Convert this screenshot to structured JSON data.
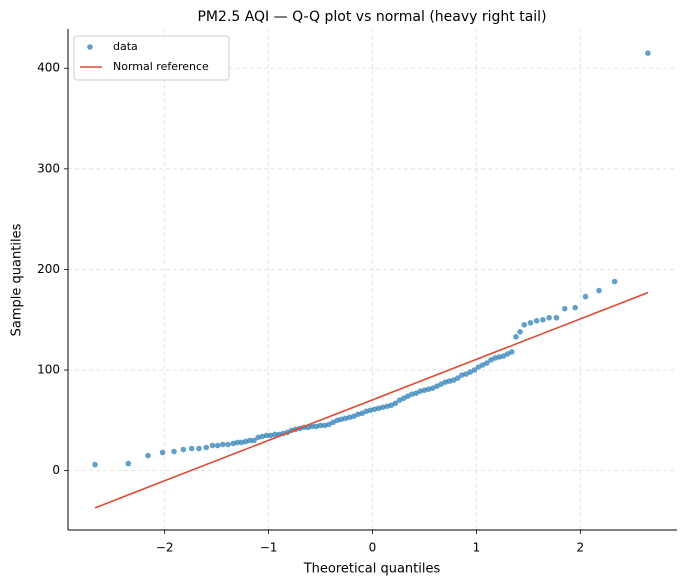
{
  "chart_data": {
    "type": "scatter",
    "title": "PM2.5 AQI — Q-Q plot vs normal  (heavy right tail)",
    "xlabel": "Theoretical quantiles",
    "ylabel": "Sample quantiles",
    "series": [
      {
        "name": "data",
        "color": "#1f77b4",
        "type": "scatter",
        "x": [
          -2.67,
          -2.35,
          -2.16,
          -2.02,
          -1.91,
          -1.82,
          -1.74,
          -1.67,
          -1.6,
          -1.54,
          -1.49,
          -1.44,
          -1.39,
          -1.34,
          -1.3,
          -1.26,
          -1.22,
          -1.18,
          -1.14,
          -1.1,
          -1.06,
          -1.02,
          -0.98,
          -0.94,
          -0.9,
          -0.86,
          -0.82,
          -0.78,
          -0.74,
          -0.7,
          -0.66,
          -0.62,
          -0.58,
          -0.54,
          -0.5,
          -0.46,
          -0.42,
          -0.38,
          -0.34,
          -0.3,
          -0.26,
          -0.22,
          -0.18,
          -0.14,
          -0.1,
          -0.06,
          -0.02,
          0.02,
          0.06,
          0.1,
          0.14,
          0.18,
          0.22,
          0.26,
          0.3,
          0.34,
          0.38,
          0.42,
          0.46,
          0.5,
          0.54,
          0.58,
          0.62,
          0.66,
          0.7,
          0.74,
          0.78,
          0.82,
          0.86,
          0.9,
          0.94,
          0.98,
          1.02,
          1.06,
          1.1,
          1.14,
          1.18,
          1.22,
          1.26,
          1.3,
          1.34,
          1.38,
          1.42,
          1.46,
          1.52,
          1.58,
          1.64,
          1.7,
          1.77,
          1.85,
          1.95,
          2.05,
          2.18,
          2.33,
          2.65
        ],
        "values": [
          6,
          7,
          15,
          18,
          19,
          21,
          22,
          22,
          23,
          25,
          25,
          26,
          26,
          27,
          28,
          28,
          29,
          30,
          30,
          33,
          34,
          35,
          35,
          36,
          36,
          37,
          38,
          40,
          41,
          42,
          43,
          43,
          44,
          44,
          45,
          45,
          46,
          48,
          50,
          51,
          52,
          53,
          54,
          56,
          57,
          59,
          60,
          61,
          62,
          63,
          64,
          65,
          67,
          70,
          72,
          74,
          76,
          77,
          79,
          80,
          81,
          82,
          84,
          86,
          88,
          89,
          90,
          92,
          95,
          96,
          98,
          100,
          103,
          105,
          107,
          110,
          112,
          113,
          114,
          116,
          118,
          133,
          138,
          145,
          147,
          149,
          150,
          152,
          152,
          161,
          162,
          173,
          179,
          188,
          415
        ]
      },
      {
        "name": "Normal reference",
        "color": "#e04a33",
        "type": "line",
        "x": [
          -2.67,
          2.65
        ],
        "values": [
          -37,
          177
        ]
      }
    ],
    "xlim": [
      -2.93,
      2.93
    ],
    "ylim": [
      -59,
      439
    ],
    "xticks": [
      {
        "value": -2,
        "label": "−2"
      },
      {
        "value": -1,
        "label": "−1"
      },
      0,
      1,
      2
    ],
    "yticks": [
      0,
      100,
      200,
      300,
      400
    ],
    "grid": true,
    "legend": "upper left"
  }
}
